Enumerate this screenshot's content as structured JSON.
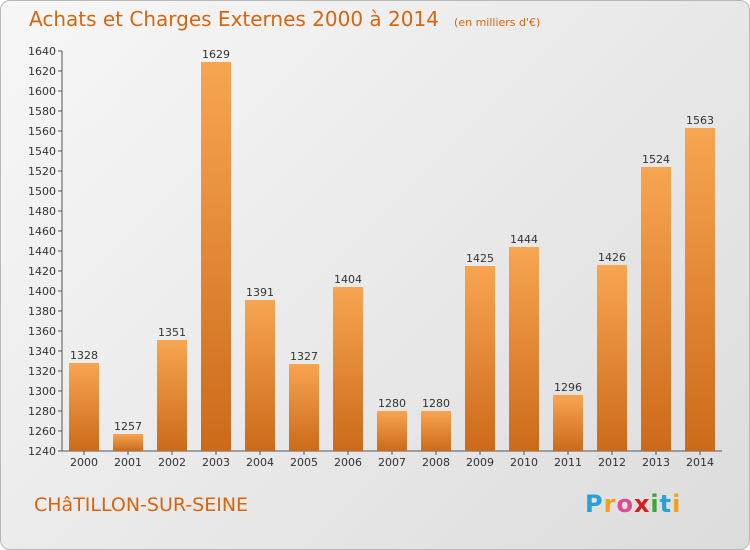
{
  "header": {
    "title": "Achats et Charges Externes 2000 à 2014",
    "subtitle": "(en milliers d'€)"
  },
  "footer": {
    "commune": "CHâTILLON-SUR-SEINE",
    "logo_letters": [
      "P",
      "r",
      "o",
      "x",
      "i",
      "t",
      "i"
    ],
    "logo_colors": [
      "#2aa0d8",
      "#f0a020",
      "#e04a8e",
      "#d02020",
      "#3aa83a",
      "#2aa0d8",
      "#f0a020"
    ]
  },
  "colors": {
    "bar_light": "#f7a551",
    "bar_dark": "#cc6a1a",
    "title": "#d6660e"
  },
  "chart_data": {
    "type": "bar",
    "categories": [
      "2000",
      "2001",
      "2002",
      "2003",
      "2004",
      "2005",
      "2006",
      "2007",
      "2008",
      "2009",
      "2010",
      "2011",
      "2012",
      "2013",
      "2014"
    ],
    "values": [
      1328,
      1257,
      1351,
      1629,
      1391,
      1327,
      1404,
      1280,
      1280,
      1425,
      1444,
      1296,
      1426,
      1524,
      1563
    ],
    "title": "Achats et Charges Externes 2000 à 2014",
    "subtitle": "(en milliers d'€)",
    "xlabel": "",
    "ylabel": "",
    "ylim": [
      1240,
      1640
    ],
    "yticks": [
      1240,
      1260,
      1280,
      1300,
      1320,
      1340,
      1360,
      1380,
      1400,
      1420,
      1440,
      1460,
      1480,
      1500,
      1520,
      1540,
      1560,
      1580,
      1600,
      1620,
      1640
    ],
    "grid": false,
    "legend": "none"
  }
}
